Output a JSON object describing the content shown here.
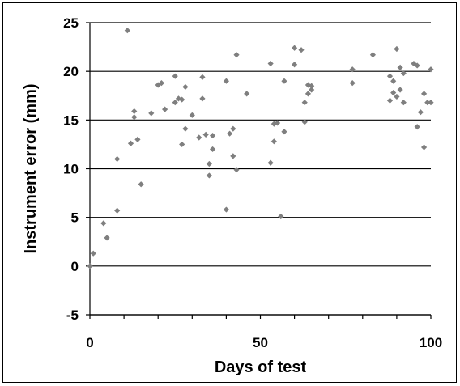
{
  "chart_data": {
    "type": "scatter",
    "title": "",
    "xlabel": "Days of test",
    "ylabel": "Instrument error (mm)",
    "xlim": [
      0,
      100
    ],
    "ylim": [
      -5,
      25
    ],
    "x_ticks": [
      "0",
      "50",
      "100"
    ],
    "y_ticks": [
      "-5",
      "0",
      "5",
      "10",
      "15",
      "20",
      "25"
    ],
    "grid": "horizontal",
    "marker_color": "#7f7f7f",
    "series": [
      {
        "x": [
          0,
          1,
          4,
          5,
          8,
          8,
          11,
          12,
          13,
          13,
          14,
          15,
          18,
          20,
          21,
          22,
          25,
          25,
          26,
          27,
          27,
          28,
          28,
          30,
          32,
          33,
          33,
          34,
          35,
          35,
          36,
          36,
          40,
          40,
          41,
          42,
          42,
          43,
          43,
          46,
          53,
          53,
          54,
          54,
          55,
          56,
          57,
          57,
          60,
          60,
          62,
          63,
          63,
          64,
          64,
          65,
          65,
          77,
          77,
          83,
          88,
          88,
          89,
          89,
          90,
          90,
          91,
          91,
          92,
          92,
          95,
          96,
          96,
          97,
          98,
          98,
          99,
          100,
          100
        ],
        "y": [
          0,
          1.3,
          4.4,
          2.9,
          5.7,
          11.0,
          24.2,
          12.6,
          15.3,
          15.9,
          13.0,
          8.4,
          15.7,
          18.6,
          18.8,
          16.1,
          19.5,
          16.8,
          17.2,
          17.1,
          12.5,
          14.1,
          18.4,
          15.5,
          13.2,
          17.2,
          19.4,
          13.5,
          10.5,
          9.3,
          12.0,
          13.4,
          5.8,
          19.0,
          13.6,
          14.1,
          11.3,
          21.7,
          9.9,
          17.7,
          20.8,
          10.6,
          12.8,
          14.6,
          14.7,
          5.1,
          19.0,
          13.8,
          22.4,
          20.7,
          22.2,
          14.8,
          16.8,
          17.7,
          18.6,
          18.1,
          18.5,
          20.2,
          18.8,
          21.7,
          19.5,
          17.0,
          19.0,
          17.8,
          17.4,
          22.3,
          20.4,
          18.1,
          19.8,
          16.8,
          20.8,
          14.3,
          20.6,
          15.8,
          12.2,
          17.7,
          16.8,
          20.2,
          16.8
        ]
      }
    ]
  }
}
